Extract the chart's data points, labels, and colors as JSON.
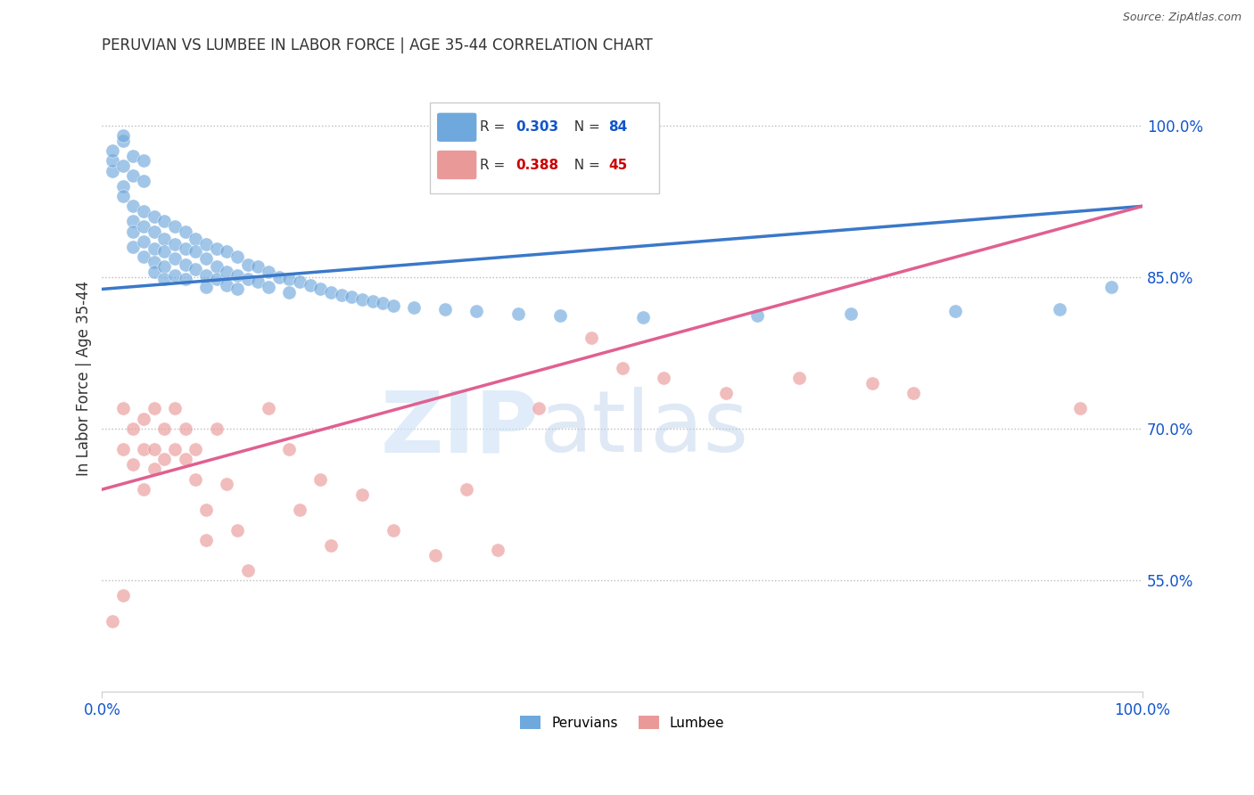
{
  "title": "PERUVIAN VS LUMBEE IN LABOR FORCE | AGE 35-44 CORRELATION CHART",
  "source": "Source: ZipAtlas.com",
  "ylabel": "In Labor Force | Age 35-44",
  "xlim": [
    0.0,
    1.0
  ],
  "ylim": [
    0.44,
    1.06
  ],
  "xticks": [
    0.0,
    1.0
  ],
  "xticklabels": [
    "0.0%",
    "100.0%"
  ],
  "ytick_positions": [
    0.55,
    0.7,
    0.85,
    1.0
  ],
  "ytick_labels": [
    "55.0%",
    "70.0%",
    "85.0%",
    "100.0%"
  ],
  "peruvian_color": "#6fa8dc",
  "lumbee_color": "#ea9999",
  "peruvian_line_color": "#3a78c9",
  "lumbee_line_color": "#e06090",
  "peruvian_R": 0.303,
  "peruvian_N": 84,
  "lumbee_R": 0.388,
  "lumbee_N": 45,
  "background_color": "#ffffff",
  "legend_blue_color": "#1155cc",
  "legend_red_color": "#cc0000",
  "peruvian_scatter": [
    [
      0.01,
      0.955
    ],
    [
      0.01,
      0.965
    ],
    [
      0.01,
      0.975
    ],
    [
      0.02,
      0.985
    ],
    [
      0.02,
      0.99
    ],
    [
      0.02,
      0.96
    ],
    [
      0.02,
      0.94
    ],
    [
      0.02,
      0.93
    ],
    [
      0.03,
      0.97
    ],
    [
      0.03,
      0.95
    ],
    [
      0.03,
      0.92
    ],
    [
      0.03,
      0.905
    ],
    [
      0.03,
      0.895
    ],
    [
      0.03,
      0.88
    ],
    [
      0.04,
      0.965
    ],
    [
      0.04,
      0.945
    ],
    [
      0.04,
      0.915
    ],
    [
      0.04,
      0.9
    ],
    [
      0.04,
      0.885
    ],
    [
      0.04,
      0.87
    ],
    [
      0.05,
      0.91
    ],
    [
      0.05,
      0.895
    ],
    [
      0.05,
      0.878
    ],
    [
      0.05,
      0.865
    ],
    [
      0.05,
      0.855
    ],
    [
      0.06,
      0.905
    ],
    [
      0.06,
      0.888
    ],
    [
      0.06,
      0.875
    ],
    [
      0.06,
      0.86
    ],
    [
      0.06,
      0.848
    ],
    [
      0.07,
      0.9
    ],
    [
      0.07,
      0.882
    ],
    [
      0.07,
      0.868
    ],
    [
      0.07,
      0.852
    ],
    [
      0.08,
      0.895
    ],
    [
      0.08,
      0.878
    ],
    [
      0.08,
      0.862
    ],
    [
      0.08,
      0.848
    ],
    [
      0.09,
      0.888
    ],
    [
      0.09,
      0.875
    ],
    [
      0.09,
      0.858
    ],
    [
      0.1,
      0.882
    ],
    [
      0.1,
      0.868
    ],
    [
      0.1,
      0.852
    ],
    [
      0.1,
      0.84
    ],
    [
      0.11,
      0.878
    ],
    [
      0.11,
      0.86
    ],
    [
      0.11,
      0.848
    ],
    [
      0.12,
      0.875
    ],
    [
      0.12,
      0.855
    ],
    [
      0.12,
      0.842
    ],
    [
      0.13,
      0.87
    ],
    [
      0.13,
      0.852
    ],
    [
      0.13,
      0.838
    ],
    [
      0.14,
      0.862
    ],
    [
      0.14,
      0.848
    ],
    [
      0.15,
      0.86
    ],
    [
      0.15,
      0.845
    ],
    [
      0.16,
      0.855
    ],
    [
      0.16,
      0.84
    ],
    [
      0.17,
      0.85
    ],
    [
      0.18,
      0.848
    ],
    [
      0.18,
      0.835
    ],
    [
      0.19,
      0.845
    ],
    [
      0.2,
      0.842
    ],
    [
      0.21,
      0.838
    ],
    [
      0.22,
      0.835
    ],
    [
      0.23,
      0.832
    ],
    [
      0.24,
      0.83
    ],
    [
      0.25,
      0.828
    ],
    [
      0.26,
      0.826
    ],
    [
      0.27,
      0.824
    ],
    [
      0.28,
      0.822
    ],
    [
      0.3,
      0.82
    ],
    [
      0.33,
      0.818
    ],
    [
      0.36,
      0.816
    ],
    [
      0.4,
      0.814
    ],
    [
      0.44,
      0.812
    ],
    [
      0.52,
      0.81
    ],
    [
      0.63,
      0.812
    ],
    [
      0.72,
      0.814
    ],
    [
      0.82,
      0.816
    ],
    [
      0.92,
      0.818
    ],
    [
      0.97,
      0.84
    ]
  ],
  "lumbee_scatter": [
    [
      0.01,
      0.51
    ],
    [
      0.02,
      0.535
    ],
    [
      0.02,
      0.68
    ],
    [
      0.02,
      0.72
    ],
    [
      0.03,
      0.7
    ],
    [
      0.03,
      0.665
    ],
    [
      0.04,
      0.71
    ],
    [
      0.04,
      0.64
    ],
    [
      0.04,
      0.68
    ],
    [
      0.05,
      0.66
    ],
    [
      0.05,
      0.72
    ],
    [
      0.05,
      0.68
    ],
    [
      0.06,
      0.7
    ],
    [
      0.06,
      0.67
    ],
    [
      0.07,
      0.72
    ],
    [
      0.07,
      0.68
    ],
    [
      0.08,
      0.7
    ],
    [
      0.08,
      0.67
    ],
    [
      0.09,
      0.65
    ],
    [
      0.09,
      0.68
    ],
    [
      0.1,
      0.62
    ],
    [
      0.1,
      0.59
    ],
    [
      0.11,
      0.7
    ],
    [
      0.12,
      0.645
    ],
    [
      0.13,
      0.6
    ],
    [
      0.14,
      0.56
    ],
    [
      0.16,
      0.72
    ],
    [
      0.18,
      0.68
    ],
    [
      0.19,
      0.62
    ],
    [
      0.21,
      0.65
    ],
    [
      0.22,
      0.585
    ],
    [
      0.25,
      0.635
    ],
    [
      0.28,
      0.6
    ],
    [
      0.32,
      0.575
    ],
    [
      0.35,
      0.64
    ],
    [
      0.38,
      0.58
    ],
    [
      0.42,
      0.72
    ],
    [
      0.47,
      0.79
    ],
    [
      0.5,
      0.76
    ],
    [
      0.54,
      0.75
    ],
    [
      0.6,
      0.735
    ],
    [
      0.67,
      0.75
    ],
    [
      0.74,
      0.745
    ],
    [
      0.78,
      0.735
    ],
    [
      0.94,
      0.72
    ]
  ]
}
